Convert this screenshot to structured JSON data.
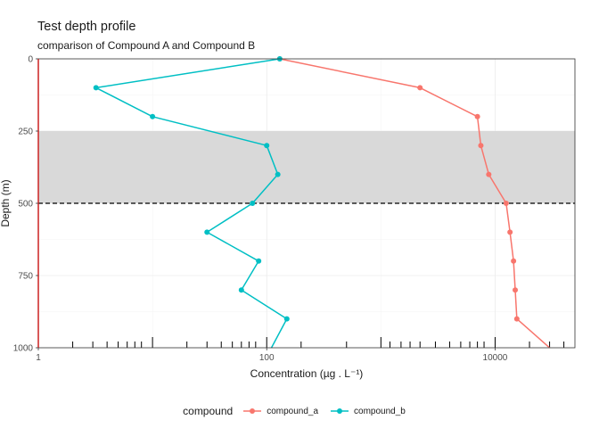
{
  "chart_data": {
    "type": "line",
    "title": "Test depth profile",
    "subtitle": "comparison of Compound A and Compound B",
    "xlabel": "Concentration (µg . L⁻¹)",
    "ylabel": "Depth (m)",
    "x_scale": "log10",
    "xlim": [
      1,
      50000
    ],
    "ylim": [
      1000,
      0
    ],
    "x_ticks": [
      "1",
      "100",
      "10000"
    ],
    "y_ticks": [
      "0",
      "250",
      "500",
      "750",
      "1000"
    ],
    "shaded_band": {
      "from": 250,
      "to": 500
    },
    "dashed_line": {
      "y": 500
    },
    "legend": {
      "title": "compound",
      "position": "bottom"
    },
    "series": [
      {
        "name": "compound_a",
        "color": "#F8766D",
        "points": [
          [
            130,
            0
          ],
          [
            2200,
            100
          ],
          [
            7000,
            200
          ],
          [
            7500,
            300
          ],
          [
            8800,
            400
          ],
          [
            12500,
            500
          ],
          [
            13500,
            600
          ],
          [
            14500,
            700
          ],
          [
            15000,
            800
          ],
          [
            15500,
            900
          ],
          [
            30000,
            1000
          ]
        ]
      },
      {
        "name": "compound_b",
        "color": "#00BFC4",
        "points": [
          [
            130,
            0
          ],
          [
            3.2,
            100
          ],
          [
            10,
            200
          ],
          [
            100,
            300
          ],
          [
            125,
            400
          ],
          [
            75,
            500
          ],
          [
            30,
            600
          ],
          [
            85,
            700
          ],
          [
            60,
            800
          ],
          [
            150,
            900
          ],
          [
            110,
            1000
          ]
        ]
      }
    ],
    "rug_x": [
      2,
      3,
      4,
      5,
      6,
      7,
      8,
      10,
      20,
      30,
      40,
      50,
      60,
      70,
      80,
      100,
      200,
      500,
      1000,
      1200,
      1500,
      1800,
      2200,
      3000,
      4000,
      5000,
      6000,
      7000,
      8000,
      10000,
      20000,
      30000,
      40000
    ]
  }
}
